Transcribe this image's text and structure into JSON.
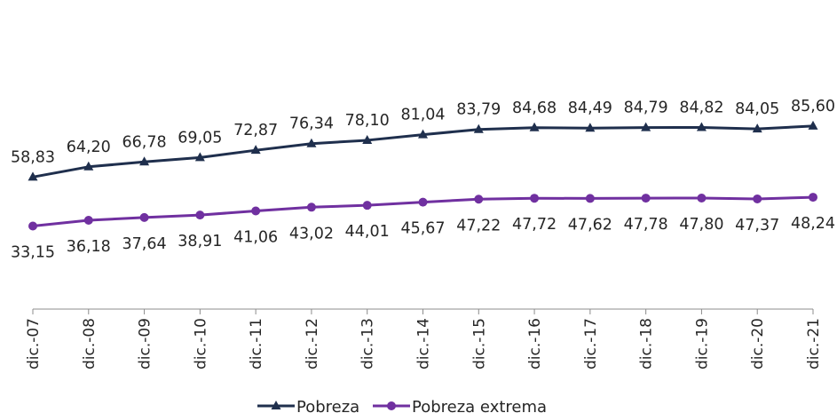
{
  "chart_data": {
    "type": "line",
    "title": "",
    "xlabel": "",
    "ylabel": "",
    "categories": [
      "dic.-07",
      "dic.-08",
      "dic.-09",
      "dic.-10",
      "dic.-11",
      "dic.-12",
      "dic.-13",
      "dic.-14",
      "dic.-15",
      "dic.-16",
      "dic.-17",
      "dic.-18",
      "dic.-19",
      "dic.-20",
      "dic.-21"
    ],
    "series": [
      {
        "name": "Pobreza",
        "color": "#1f2f4d",
        "marker": "triangle",
        "values": [
          58.83,
          64.2,
          66.78,
          69.05,
          72.87,
          76.34,
          78.1,
          81.04,
          83.79,
          84.68,
          84.49,
          84.79,
          84.82,
          84.05,
          85.6
        ],
        "labels": [
          "58,83",
          "64,20",
          "66,78",
          "69,05",
          "72,87",
          "76,34",
          "78,10",
          "81,04",
          "83,79",
          "84,68",
          "84,49",
          "84,79",
          "84,82",
          "84,05",
          "85,60"
        ],
        "label_position": "above"
      },
      {
        "name": "Pobreza extrema",
        "color": "#7030a0",
        "marker": "circle",
        "values": [
          33.15,
          36.18,
          37.64,
          38.91,
          41.06,
          43.02,
          44.01,
          45.67,
          47.22,
          47.72,
          47.62,
          47.78,
          47.8,
          47.37,
          48.24
        ],
        "labels": [
          "33,15",
          "36,18",
          "37,64",
          "38,91",
          "41,06",
          "43,02",
          "44,01",
          "45,67",
          "47,22",
          "47,72",
          "47,62",
          "47,78",
          "47,80",
          "47,37",
          "48,24"
        ],
        "label_position": "below"
      }
    ],
    "y_axis_visible": false,
    "grid": false,
    "legend_position": "bottom"
  }
}
